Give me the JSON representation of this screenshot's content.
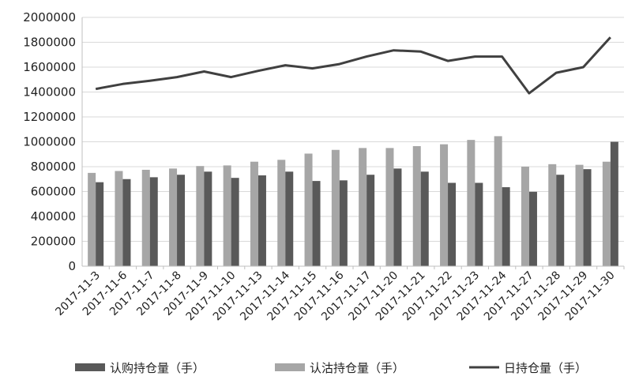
{
  "chart_data": {
    "type": "bar",
    "categories": [
      "2017-11-3",
      "2017-11-6",
      "2017-11-7",
      "2017-11-8",
      "2017-11-9",
      "2017-11-10",
      "2017-11-13",
      "2017-11-14",
      "2017-11-15",
      "2017-11-16",
      "2017-11-17",
      "2017-11-20",
      "2017-11-21",
      "2017-11-22",
      "2017-11-23",
      "2017-11-24",
      "2017-11-27",
      "2017-11-28",
      "2017-11-29",
      "2017-11-30"
    ],
    "ylim": [
      0,
      2000000
    ],
    "yticks": [
      "0",
      "200000",
      "400000",
      "600000",
      "800000",
      "1000000",
      "1200000",
      "1400000",
      "1600000",
      "1800000",
      "2000000"
    ],
    "grid": true,
    "legend_position": "bottom",
    "series": [
      {
        "name": "认购持仓量（手）",
        "type": "bar",
        "color": "#595959",
        "values": [
          675000,
          700000,
          715000,
          735000,
          760000,
          710000,
          730000,
          760000,
          685000,
          690000,
          735000,
          785000,
          760000,
          670000,
          670000,
          635000,
          598000,
          735000,
          780000,
          1000000
        ]
      },
      {
        "name": "认沽持仓量（手）",
        "type": "bar",
        "color": "#a6a6a6",
        "values": [
          750000,
          765000,
          775000,
          785000,
          805000,
          810000,
          840000,
          855000,
          905000,
          935000,
          950000,
          950000,
          965000,
          980000,
          1015000,
          1045000,
          800000,
          820000,
          815000,
          840000
        ]
      },
      {
        "name": "日持仓量（手）",
        "type": "line",
        "color": "#404040",
        "values": [
          1425000,
          1465000,
          1490000,
          1520000,
          1565000,
          1520000,
          1570000,
          1615000,
          1590000,
          1625000,
          1685000,
          1735000,
          1725000,
          1650000,
          1685000,
          1685000,
          1390000,
          1555000,
          1600000,
          1840000
        ]
      }
    ]
  }
}
